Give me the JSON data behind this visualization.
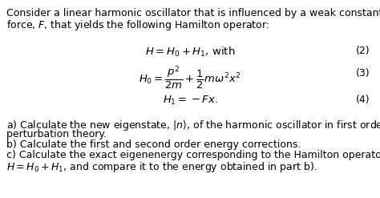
{
  "background_color": "#ffffff",
  "intro_text_line1": "Consider a linear harmonic oscillator that is influenced by a weak constant",
  "intro_text_line2": "force, $F$, that yields the following Hamilton operator:",
  "eq2_lhs": "$H = H_0 + H_1$, with",
  "eq2_num": "(2)",
  "eq3_lhs": "$H_0 = \\dfrac{p^2}{2m} + \\dfrac{1}{2}m\\omega^2 x^2$",
  "eq3_num": "(3)",
  "eq4_lhs": "$H_1 = -Fx.$",
  "eq4_num": "(4)",
  "part_a": "a) Calculate the new eigenstate, $|n\\rangle$, of the harmonic oscillator in first order",
  "part_a2": "perturbation theory.",
  "part_b": "b) Calculate the first and second order energy corrections.",
  "part_c": "c) Calculate the exact eigenenergy corresponding to the Hamilton operator,",
  "part_c2": "$H = H_0 + H_1$, and compare it to the energy obtained in part b).",
  "fontsize_body": 9.0,
  "fontsize_eq": 9.5
}
